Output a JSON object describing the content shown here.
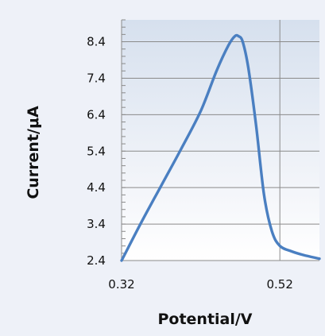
{
  "chart_data": {
    "type": "line",
    "title": "",
    "xlabel": "Potential/V",
    "ylabel": "Current/μA",
    "xlim": [
      0.32,
      0.57
    ],
    "ylim": [
      2.4,
      9.0
    ],
    "xticks": [
      0.32,
      0.52
    ],
    "xtick_labels": [
      "0.32",
      "0.52"
    ],
    "yticks": [
      2.4,
      3.4,
      4.4,
      5.4,
      6.4,
      7.4,
      8.4
    ],
    "ytick_labels": [
      "2.4",
      "3.4",
      "4.4",
      "5.4",
      "6.4",
      "7.4",
      "8.4"
    ],
    "grid": true,
    "legend": "none",
    "colors": {
      "line": "#4a7fc1",
      "grid": "#8a8a8a",
      "plot_top": "#d6e0ee",
      "plot_bottom": "#ffffff"
    },
    "series": [
      {
        "x": [
          0.32,
          0.345,
          0.37,
          0.395,
          0.42,
          0.44,
          0.455,
          0.463,
          0.468,
          0.473,
          0.48,
          0.49,
          0.5,
          0.51,
          0.52,
          0.535,
          0.55,
          0.57
        ],
        "y": [
          2.4,
          3.45,
          4.45,
          5.45,
          6.5,
          7.6,
          8.3,
          8.55,
          8.55,
          8.4,
          7.7,
          6.1,
          4.2,
          3.2,
          2.8,
          2.65,
          2.55,
          2.45
        ]
      }
    ]
  }
}
